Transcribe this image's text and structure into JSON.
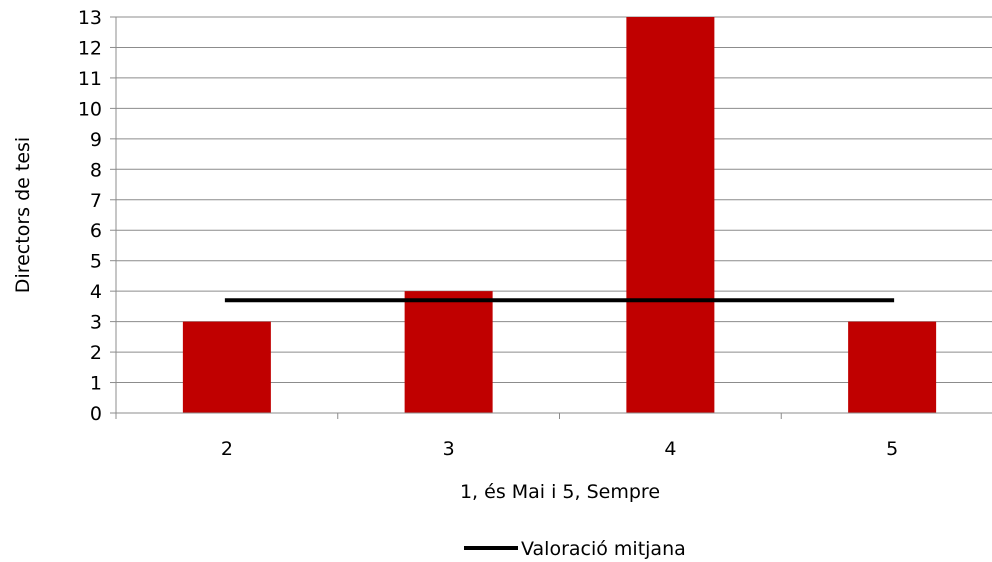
{
  "chart_data": {
    "type": "bar",
    "categories": [
      "2",
      "3",
      "4",
      "5"
    ],
    "series": [
      {
        "values": [
          3,
          4,
          13,
          3
        ],
        "color": "#c00000"
      }
    ],
    "reference_line": {
      "name": "Valoració mitjana",
      "value": 3.7,
      "color": "#000000"
    },
    "xlabel": "1, és Mai i 5, Sempre",
    "ylabel": "Directors de tesi",
    "ylim": [
      0,
      13
    ],
    "yticks": [
      0,
      1,
      2,
      3,
      4,
      5,
      6,
      7,
      8,
      9,
      10,
      11,
      12,
      13
    ],
    "grid": true,
    "legend": {
      "position": "bottom",
      "entries": [
        "Valoració mitjana"
      ]
    }
  }
}
